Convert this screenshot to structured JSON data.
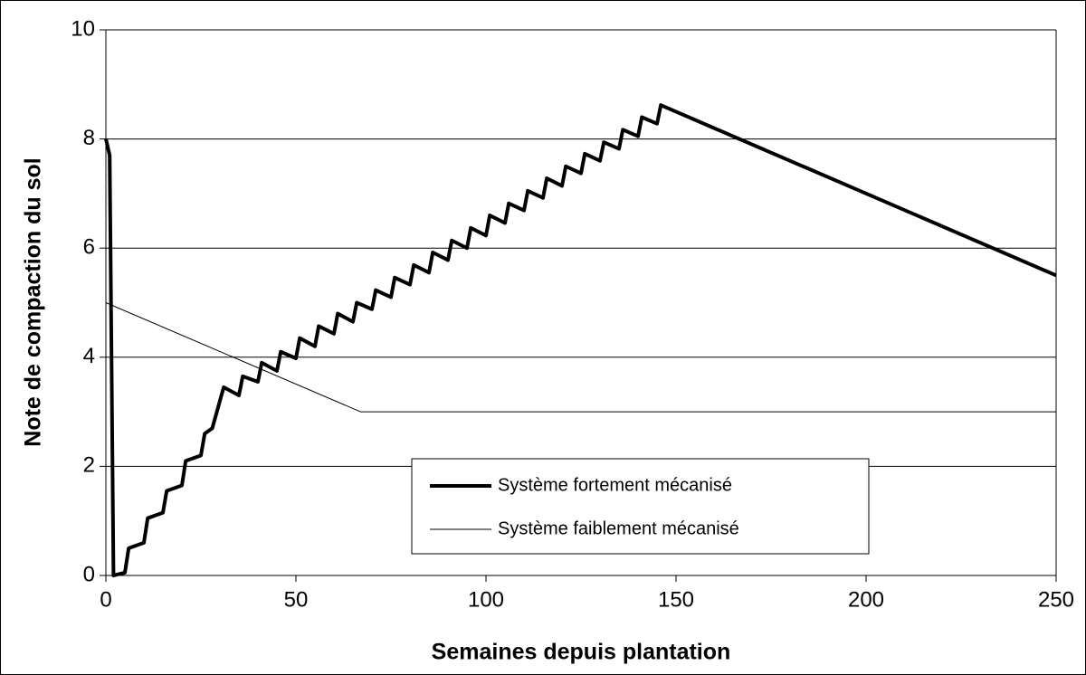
{
  "chart_data": {
    "type": "line",
    "xlabel": "Semaines depuis plantation",
    "ylabel": "Note de compaction du sol",
    "xlim": [
      0,
      250
    ],
    "xticks": [
      0,
      50,
      100,
      150,
      200,
      250
    ],
    "ylim": [
      0,
      10
    ],
    "yticks": [
      0,
      2,
      4,
      6,
      8,
      10
    ],
    "grid": true,
    "legend": "bottom-center",
    "series": [
      {
        "name": "Système fortement mécanisé",
        "color": "#000000",
        "width": 4,
        "x": [
          0,
          1,
          2,
          5,
          6,
          10,
          11,
          15,
          16,
          20,
          21,
          25,
          26,
          28,
          31,
          35,
          36,
          40,
          41,
          45,
          46,
          50,
          51,
          55,
          56,
          60,
          61,
          65,
          66,
          70,
          71,
          75,
          76,
          80,
          81,
          85,
          86,
          90,
          91,
          95,
          96,
          100,
          101,
          105,
          106,
          110,
          111,
          115,
          116,
          120,
          121,
          125,
          126,
          130,
          131,
          135,
          136,
          140,
          141,
          145,
          146,
          250
        ],
        "values": [
          8,
          7.7,
          0,
          0.05,
          0.5,
          0.6,
          1.05,
          1.15,
          1.55,
          1.65,
          2.1,
          2.2,
          2.6,
          2.7,
          3.45,
          3.3,
          3.65,
          3.55,
          3.9,
          3.75,
          4.1,
          3.98,
          4.35,
          4.2,
          4.57,
          4.43,
          4.8,
          4.65,
          5.0,
          4.88,
          5.23,
          5.1,
          5.46,
          5.33,
          5.69,
          5.55,
          5.92,
          5.78,
          6.14,
          6.0,
          6.37,
          6.23,
          6.6,
          6.46,
          6.82,
          6.69,
          7.05,
          6.92,
          7.28,
          7.14,
          7.5,
          7.37,
          7.73,
          7.6,
          7.94,
          7.82,
          8.17,
          8.05,
          8.4,
          8.28,
          8.62,
          5.5
        ]
      },
      {
        "name": "Système faiblement mécanisé",
        "color": "#000000",
        "width": 1,
        "x": [
          0,
          67,
          250
        ],
        "values": [
          5,
          3,
          3
        ]
      }
    ]
  }
}
